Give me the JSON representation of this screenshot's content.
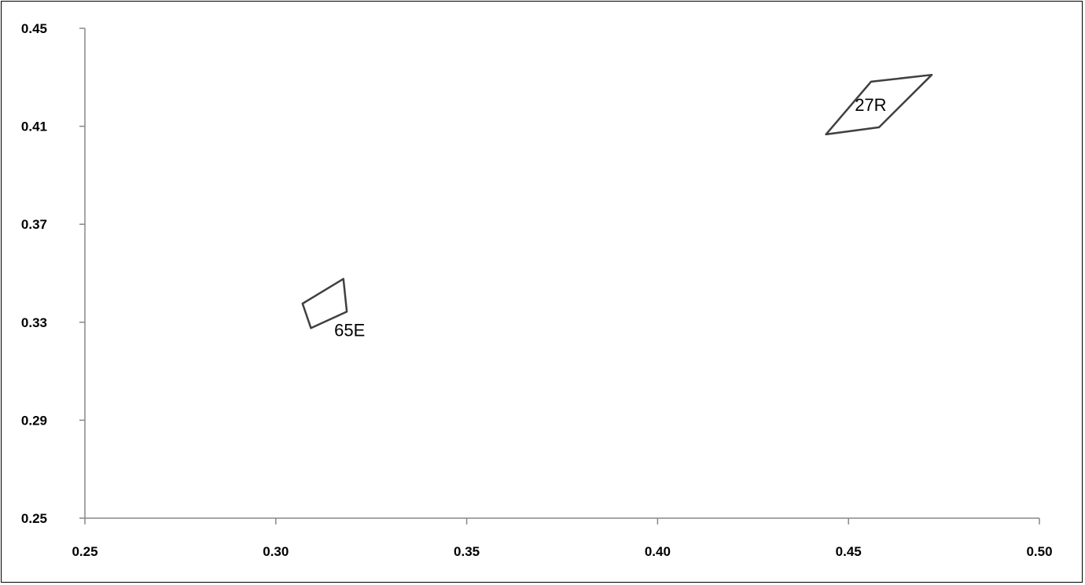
{
  "chart_data": {
    "type": "scatter",
    "title": "",
    "xlabel": "",
    "ylabel": "",
    "xlim": [
      0.25,
      0.5
    ],
    "ylim": [
      0.25,
      0.45
    ],
    "x_ticks": [
      "0.25",
      "0.30",
      "0.35",
      "0.40",
      "0.45",
      "0.50"
    ],
    "y_ticks": [
      "0.45",
      "0.41",
      "0.37",
      "0.33",
      "0.29",
      "0.25"
    ],
    "grid": false,
    "legend": "none",
    "line_color": "#404040",
    "series": [
      {
        "label": "27R",
        "points": [
          {
            "x": 0.4441,
            "y": 0.4067
          },
          {
            "x": 0.4559,
            "y": 0.4282
          },
          {
            "x": 0.4718,
            "y": 0.431
          },
          {
            "x": 0.458,
            "y": 0.4096
          }
        ]
      },
      {
        "label": "65E",
        "points": [
          {
            "x": 0.307,
            "y": 0.3376
          },
          {
            "x": 0.3177,
            "y": 0.3477
          },
          {
            "x": 0.3186,
            "y": 0.3343
          },
          {
            "x": 0.3092,
            "y": 0.3276
          }
        ]
      }
    ]
  }
}
